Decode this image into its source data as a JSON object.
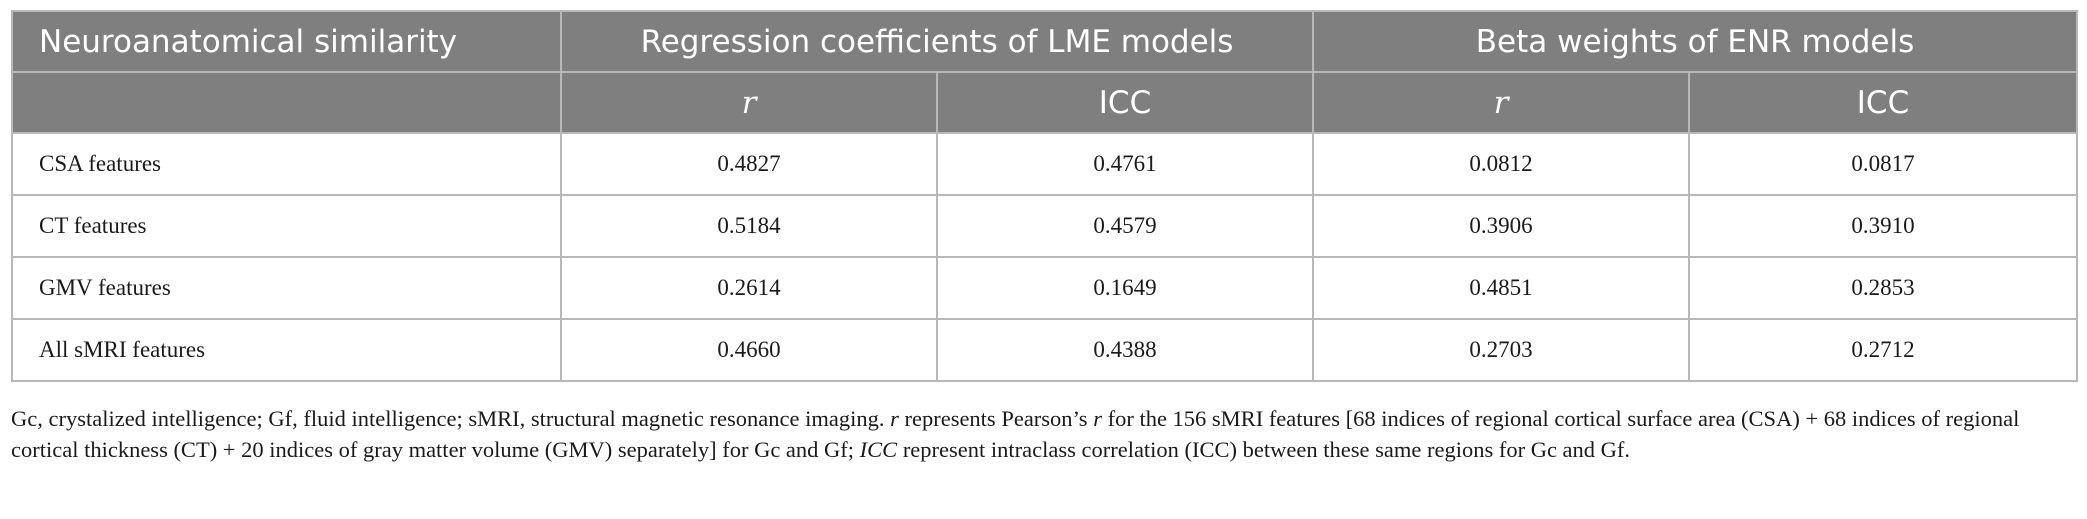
{
  "header": {
    "col1": "Neuroanatomical similarity",
    "group1": "Regression coefficients of LME models",
    "group2": "Beta weights of ENR models",
    "sub_r": "r",
    "sub_icc": "ICC"
  },
  "rows": [
    {
      "label": "CSA features",
      "lme_r": "0.4827",
      "lme_icc": "0.4761",
      "enr_r": "0.0812",
      "enr_icc": "0.0817"
    },
    {
      "label": "CT features",
      "lme_r": "0.5184",
      "lme_icc": "0.4579",
      "enr_r": "0.3906",
      "enr_icc": "0.3910"
    },
    {
      "label": "GMV features",
      "lme_r": "0.2614",
      "lme_icc": "0.1649",
      "enr_r": "0.4851",
      "enr_icc": "0.2853"
    },
    {
      "label": "All sMRI features",
      "lme_r": "0.4660",
      "lme_icc": "0.4388",
      "enr_r": "0.2703",
      "enr_icc": "0.2712"
    }
  ],
  "footnote": {
    "part1": "Gc, crystalized intelligence; Gf, fluid intelligence; sMRI, structural magnetic resonance imaging. ",
    "r_symbol": "r",
    "part2": " represents Pearson’s ",
    "r_symbol2": "r",
    "part3": " for the 156 sMRI features [68 indices of regional cortical surface area (CSA) + 68 indices of regional cortical thickness (CT) + 20 indices of gray matter volume (GMV) separately] for Gc and Gf; ",
    "icc_symbol": "ICC",
    "part4": " represent intraclass correlation (ICC) between these same regions for Gc and Gf."
  }
}
